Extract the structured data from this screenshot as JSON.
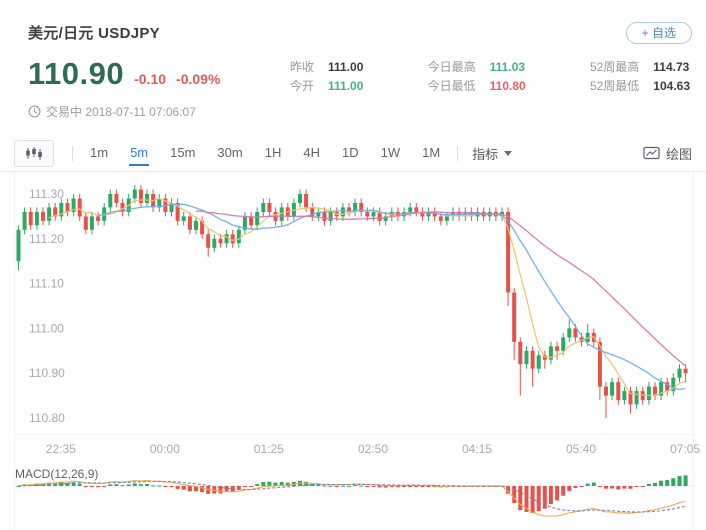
{
  "header": {
    "title": "美元/日元 USDJPY",
    "watchlist_button": "+ 自选",
    "price": "110.90",
    "change": "-0.10",
    "change_pct": "-0.09%",
    "status": "交易中 2018-07-11 07:06:07",
    "stats": [
      {
        "label": "昨收",
        "value": "111.00",
        "color": "dark"
      },
      {
        "label": "今开",
        "value": "111.00",
        "color": "green"
      },
      {
        "label": "今日最高",
        "value": "111.03",
        "color": "green"
      },
      {
        "label": "今日最低",
        "value": "110.80",
        "color": "red"
      },
      {
        "label": "52周最高",
        "value": "114.73",
        "color": "dark"
      },
      {
        "label": "52周最低",
        "value": "104.63",
        "color": "dark"
      }
    ]
  },
  "toolbar": {
    "timeframes": [
      "1m",
      "5m",
      "15m",
      "30m",
      "1H",
      "4H",
      "1D",
      "1W",
      "1M"
    ],
    "active_timeframe": "5m",
    "indicator_label": "指标",
    "draw_label": "绘图"
  },
  "chart_data": {
    "type": "candlestick",
    "symbol": "USDJPY",
    "interval": "5m",
    "y_ticks": [
      "111.30",
      "111.20",
      "111.10",
      "111.00",
      "110.90",
      "110.80"
    ],
    "x_labels": [
      "22:35",
      "00:00",
      "01:25",
      "02:50",
      "04:15",
      "05:40",
      "07:05"
    ],
    "x_label_indices": [
      7,
      24,
      41,
      58,
      75,
      92,
      109
    ],
    "y_range": [
      110.77,
      111.34
    ],
    "colors": {
      "up": "#2fa863",
      "down": "#e8504a",
      "ma_fast": "#ecc377",
      "ma_mid": "#6fb0e2",
      "ma_slow": "#d678b2",
      "accent_blue": "#3479d9",
      "price_green": "#2d6b57",
      "text_red": "#ec5e5e",
      "text_green": "#45b08c"
    },
    "ma_periods": {
      "fast": 6,
      "mid": 14,
      "slow": 30
    },
    "macd": {
      "label": "MACD(12,26,9)",
      "fast": 12,
      "slow": 26,
      "signal": 9
    },
    "candles": [
      [
        111.15,
        111.23,
        111.13,
        111.22
      ],
      [
        111.22,
        111.27,
        111.21,
        111.26
      ],
      [
        111.26,
        111.27,
        111.22,
        111.23
      ],
      [
        111.23,
        111.27,
        111.22,
        111.26
      ],
      [
        111.26,
        111.27,
        111.23,
        111.24
      ],
      [
        111.24,
        111.28,
        111.23,
        111.27
      ],
      [
        111.27,
        111.28,
        111.24,
        111.25
      ],
      [
        111.25,
        111.29,
        111.24,
        111.28
      ],
      [
        111.28,
        111.29,
        111.25,
        111.26
      ],
      [
        111.26,
        111.3,
        111.25,
        111.29
      ],
      [
        111.29,
        111.3,
        111.24,
        111.25
      ],
      [
        111.25,
        111.26,
        111.21,
        111.22
      ],
      [
        111.22,
        111.26,
        111.21,
        111.25
      ],
      [
        111.25,
        111.26,
        111.23,
        111.24
      ],
      [
        111.24,
        111.28,
        111.23,
        111.27
      ],
      [
        111.27,
        111.31,
        111.26,
        111.3
      ],
      [
        111.3,
        111.31,
        111.27,
        111.28
      ],
      [
        111.28,
        111.29,
        111.25,
        111.26
      ],
      [
        111.26,
        111.3,
        111.25,
        111.29
      ],
      [
        111.29,
        111.32,
        111.28,
        111.31
      ],
      [
        111.31,
        111.32,
        111.27,
        111.28
      ],
      [
        111.28,
        111.31,
        111.27,
        111.3
      ],
      [
        111.3,
        111.31,
        111.26,
        111.27
      ],
      [
        111.27,
        111.3,
        111.26,
        111.29
      ],
      [
        111.29,
        111.3,
        111.25,
        111.26
      ],
      [
        111.26,
        111.29,
        111.25,
        111.28
      ],
      [
        111.28,
        111.29,
        111.23,
        111.24
      ],
      [
        111.24,
        111.26,
        111.23,
        111.25
      ],
      [
        111.25,
        111.26,
        111.21,
        111.22
      ],
      [
        111.22,
        111.25,
        111.21,
        111.24
      ],
      [
        111.24,
        111.25,
        111.2,
        111.21
      ],
      [
        111.21,
        111.22,
        111.16,
        111.18
      ],
      [
        111.18,
        111.21,
        111.17,
        111.2
      ],
      [
        111.2,
        111.21,
        111.18,
        111.19
      ],
      [
        111.19,
        111.22,
        111.18,
        111.21
      ],
      [
        111.21,
        111.22,
        111.18,
        111.19
      ],
      [
        111.19,
        111.23,
        111.18,
        111.22
      ],
      [
        111.22,
        111.26,
        111.21,
        111.25
      ],
      [
        111.25,
        111.26,
        111.22,
        111.23
      ],
      [
        111.23,
        111.27,
        111.22,
        111.26
      ],
      [
        111.26,
        111.29,
        111.25,
        111.28
      ],
      [
        111.28,
        111.29,
        111.25,
        111.26
      ],
      [
        111.26,
        111.27,
        111.23,
        111.24
      ],
      [
        111.24,
        111.28,
        111.23,
        111.27
      ],
      [
        111.27,
        111.28,
        111.24,
        111.25
      ],
      [
        111.25,
        111.29,
        111.24,
        111.28
      ],
      [
        111.28,
        111.31,
        111.27,
        111.3
      ],
      [
        111.3,
        111.31,
        111.26,
        111.27
      ],
      [
        111.27,
        111.28,
        111.24,
        111.25
      ],
      [
        111.25,
        111.27,
        111.24,
        111.26
      ],
      [
        111.26,
        111.27,
        111.23,
        111.24
      ],
      [
        111.24,
        111.27,
        111.23,
        111.26
      ],
      [
        111.26,
        111.27,
        111.24,
        111.25
      ],
      [
        111.25,
        111.28,
        111.24,
        111.27
      ],
      [
        111.27,
        111.28,
        111.25,
        111.26
      ],
      [
        111.26,
        111.29,
        111.25,
        111.28
      ],
      [
        111.28,
        111.29,
        111.25,
        111.26
      ],
      [
        111.26,
        111.27,
        111.24,
        111.25
      ],
      [
        111.25,
        111.27,
        111.24,
        111.26
      ],
      [
        111.26,
        111.27,
        111.23,
        111.24
      ],
      [
        111.24,
        111.26,
        111.23,
        111.25
      ],
      [
        111.25,
        111.27,
        111.24,
        111.26
      ],
      [
        111.26,
        111.27,
        111.24,
        111.25
      ],
      [
        111.25,
        111.27,
        111.24,
        111.26
      ],
      [
        111.26,
        111.28,
        111.25,
        111.27
      ],
      [
        111.27,
        111.28,
        111.25,
        111.26
      ],
      [
        111.26,
        111.27,
        111.24,
        111.25
      ],
      [
        111.25,
        111.27,
        111.24,
        111.26
      ],
      [
        111.26,
        111.27,
        111.24,
        111.25
      ],
      [
        111.25,
        111.26,
        111.23,
        111.24
      ],
      [
        111.24,
        111.26,
        111.23,
        111.25
      ],
      [
        111.25,
        111.27,
        111.24,
        111.26
      ],
      [
        111.26,
        111.27,
        111.24,
        111.25
      ],
      [
        111.25,
        111.27,
        111.24,
        111.26
      ],
      [
        111.26,
        111.27,
        111.24,
        111.25
      ],
      [
        111.25,
        111.27,
        111.24,
        111.26
      ],
      [
        111.26,
        111.27,
        111.24,
        111.25
      ],
      [
        111.25,
        111.27,
        111.24,
        111.26
      ],
      [
        111.26,
        111.27,
        111.24,
        111.25
      ],
      [
        111.25,
        111.27,
        111.24,
        111.26
      ],
      [
        111.26,
        111.27,
        111.05,
        111.08
      ],
      [
        111.08,
        111.09,
        110.93,
        110.97
      ],
      [
        110.97,
        110.98,
        110.85,
        110.92
      ],
      [
        110.92,
        110.96,
        110.91,
        110.95
      ],
      [
        110.95,
        110.96,
        110.87,
        110.91
      ],
      [
        110.91,
        110.95,
        110.9,
        110.94
      ],
      [
        110.94,
        110.95,
        110.91,
        110.93
      ],
      [
        110.93,
        110.97,
        110.92,
        110.96
      ],
      [
        110.96,
        110.97,
        110.93,
        110.95
      ],
      [
        110.95,
        110.99,
        110.94,
        110.98
      ],
      [
        110.98,
        111.02,
        110.97,
        111.0
      ],
      [
        111.0,
        111.01,
        110.97,
        110.98
      ],
      [
        110.98,
        110.99,
        110.96,
        110.97
      ],
      [
        110.97,
        111.01,
        110.96,
        110.99
      ],
      [
        110.99,
        111.0,
        110.96,
        110.97
      ],
      [
        110.97,
        110.98,
        110.84,
        110.87
      ],
      [
        110.87,
        110.88,
        110.8,
        110.85
      ],
      [
        110.85,
        110.89,
        110.84,
        110.88
      ],
      [
        110.88,
        110.89,
        110.83,
        110.84
      ],
      [
        110.84,
        110.87,
        110.83,
        110.86
      ],
      [
        110.86,
        110.87,
        110.81,
        110.83
      ],
      [
        110.83,
        110.87,
        110.82,
        110.86
      ],
      [
        110.86,
        110.87,
        110.83,
        110.84
      ],
      [
        110.84,
        110.88,
        110.83,
        110.87
      ],
      [
        110.87,
        110.88,
        110.84,
        110.85
      ],
      [
        110.85,
        110.89,
        110.84,
        110.88
      ],
      [
        110.88,
        110.89,
        110.85,
        110.86
      ],
      [
        110.86,
        110.9,
        110.85,
        110.89
      ],
      [
        110.89,
        110.92,
        110.88,
        110.91
      ],
      [
        110.91,
        110.92,
        110.88,
        110.9
      ]
    ]
  }
}
